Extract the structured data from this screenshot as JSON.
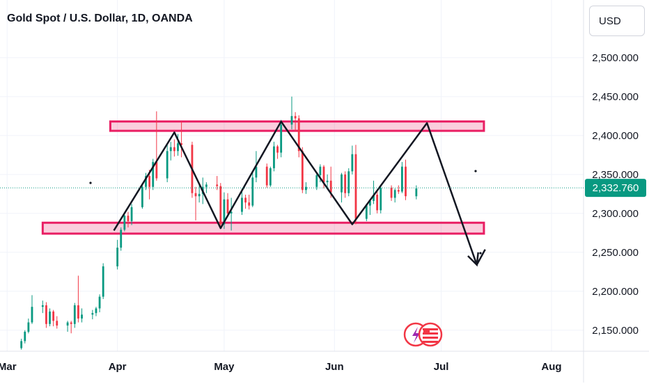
{
  "header": {
    "title": "Gold Spot / U.S. Dollar, 1D, OANDA",
    "currency": "USD"
  },
  "chart_data": {
    "type": "candlestick",
    "yticks": [
      "2,500.000",
      "2,450.000",
      "2,400.000",
      "2,350.000",
      "2,300.000",
      "2,250.000",
      "2,200.000",
      "2,150.000"
    ],
    "ytick_values": [
      2500,
      2450,
      2400,
      2350,
      2300,
      2250,
      2200,
      2150
    ],
    "ylim": [
      2123,
      2574
    ],
    "xticks": [
      "Mar",
      "Apr",
      "May",
      "Jun",
      "Jul",
      "Aug"
    ],
    "xtick_dates": [
      "2024-03-01",
      "2024-04-01",
      "2024-05-01",
      "2024-06-01",
      "2024-07-01",
      "2024-08-01"
    ],
    "xlim": [
      "2024-02-28",
      "2024-08-10"
    ],
    "last_price": "2,332.760",
    "last_price_value": 2332.76,
    "up_color": "#089981",
    "down_color": "#f23645",
    "candles": [
      [
        "2024-03-05",
        2127,
        2139,
        2125,
        2136
      ],
      [
        "2024-03-06",
        2136,
        2150,
        2133,
        2148
      ],
      [
        "2024-03-07",
        2148,
        2165,
        2146,
        2160
      ],
      [
        "2024-03-08",
        2160,
        2195,
        2158,
        2180
      ],
      [
        "2024-03-11",
        2180,
        2188,
        2172,
        2182
      ],
      [
        "2024-03-12",
        2182,
        2186,
        2153,
        2158
      ],
      [
        "2024-03-13",
        2158,
        2178,
        2155,
        2174
      ],
      [
        "2024-03-14",
        2174,
        2176,
        2155,
        2162
      ],
      [
        "2024-03-15",
        2162,
        2168,
        2152,
        2156
      ],
      [
        "2024-03-18",
        2156,
        2162,
        2148,
        2160
      ],
      [
        "2024-03-19",
        2160,
        2162,
        2146,
        2158
      ],
      [
        "2024-03-20",
        2158,
        2185,
        2153,
        2182
      ],
      [
        "2024-03-21",
        2182,
        2220,
        2160,
        2165
      ],
      [
        "2024-03-22",
        2165,
        2178,
        2160,
        2170
      ],
      [
        "2024-03-25",
        2170,
        2176,
        2164,
        2172
      ],
      [
        "2024-03-26",
        2172,
        2180,
        2168,
        2178
      ],
      [
        "2024-03-27",
        2178,
        2196,
        2173,
        2193
      ],
      [
        "2024-03-28",
        2193,
        2236,
        2190,
        2232
      ],
      [
        "2024-04-01",
        2232,
        2266,
        2228,
        2256
      ],
      [
        "2024-04-02",
        2256,
        2282,
        2252,
        2279
      ],
      [
        "2024-04-03",
        2279,
        2298,
        2277,
        2297
      ],
      [
        "2024-04-04",
        2297,
        2302,
        2282,
        2290
      ],
      [
        "2024-04-05",
        2290,
        2312,
        2285,
        2308
      ],
      [
        "2024-04-08",
        2308,
        2338,
        2306,
        2334
      ],
      [
        "2024-04-09",
        2334,
        2352,
        2330,
        2348
      ],
      [
        "2024-04-10",
        2348,
        2356,
        2318,
        2334
      ],
      [
        "2024-04-11",
        2334,
        2370,
        2330,
        2366
      ],
      [
        "2024-04-12",
        2366,
        2431,
        2342,
        2345
      ],
      [
        "2024-04-15",
        2345,
        2388,
        2340,
        2380
      ],
      [
        "2024-04-16",
        2380,
        2392,
        2368,
        2385
      ],
      [
        "2024-04-17",
        2385,
        2395,
        2373,
        2380
      ],
      [
        "2024-04-18",
        2380,
        2402,
        2374,
        2390
      ],
      [
        "2024-04-19",
        2390,
        2418,
        2372,
        2388
      ],
      [
        "2024-04-22",
        2388,
        2392,
        2320,
        2326
      ],
      [
        "2024-04-23",
        2326,
        2334,
        2291,
        2322
      ],
      [
        "2024-04-24",
        2322,
        2338,
        2314,
        2325
      ],
      [
        "2024-04-25",
        2325,
        2346,
        2312,
        2334
      ],
      [
        "2024-04-26",
        2334,
        2340,
        2326,
        2337
      ],
      [
        "2024-04-29",
        2337,
        2348,
        2330,
        2335
      ],
      [
        "2024-04-30",
        2335,
        2339,
        2283,
        2286
      ],
      [
        "2024-05-01",
        2286,
        2327,
        2280,
        2318
      ],
      [
        "2024-05-02",
        2318,
        2326,
        2295,
        2300
      ],
      [
        "2024-05-03",
        2300,
        2320,
        2278,
        2302
      ],
      [
        "2024-05-06",
        2302,
        2332,
        2298,
        2320
      ],
      [
        "2024-05-07",
        2320,
        2324,
        2306,
        2314
      ],
      [
        "2024-05-08",
        2314,
        2324,
        2305,
        2310
      ],
      [
        "2024-05-09",
        2310,
        2353,
        2308,
        2346
      ],
      [
        "2024-05-10",
        2346,
        2380,
        2340,
        2360
      ],
      [
        "2024-05-13",
        2360,
        2364,
        2333,
        2336
      ],
      [
        "2024-05-14",
        2336,
        2360,
        2334,
        2358
      ],
      [
        "2024-05-15",
        2358,
        2392,
        2354,
        2386
      ],
      [
        "2024-05-16",
        2386,
        2388,
        2370,
        2378
      ],
      [
        "2024-05-17",
        2378,
        2420,
        2372,
        2414
      ],
      [
        "2024-05-20",
        2414,
        2450,
        2408,
        2425
      ],
      [
        "2024-05-21",
        2425,
        2430,
        2405,
        2422
      ],
      [
        "2024-05-22",
        2422,
        2426,
        2372,
        2380
      ],
      [
        "2024-05-23",
        2380,
        2385,
        2326,
        2330
      ],
      [
        "2024-05-24",
        2330,
        2340,
        2325,
        2334
      ],
      [
        "2024-05-27",
        2334,
        2352,
        2330,
        2349
      ],
      [
        "2024-05-28",
        2349,
        2363,
        2340,
        2360
      ],
      [
        "2024-05-29",
        2360,
        2362,
        2332,
        2340
      ],
      [
        "2024-05-30",
        2340,
        2350,
        2334,
        2342
      ],
      [
        "2024-05-31",
        2342,
        2360,
        2320,
        2327
      ],
      [
        "2024-06-03",
        2327,
        2352,
        2314,
        2350
      ],
      [
        "2024-06-04",
        2350,
        2354,
        2320,
        2326
      ],
      [
        "2024-06-05",
        2326,
        2358,
        2322,
        2354
      ],
      [
        "2024-06-06",
        2354,
        2387,
        2350,
        2376
      ],
      [
        "2024-06-07",
        2376,
        2388,
        2286,
        2293
      ],
      [
        "2024-06-10",
        2293,
        2312,
        2290,
        2310
      ],
      [
        "2024-06-11",
        2310,
        2318,
        2298,
        2316
      ],
      [
        "2024-06-12",
        2316,
        2342,
        2312,
        2324
      ],
      [
        "2024-06-13",
        2324,
        2330,
        2300,
        2304
      ],
      [
        "2024-06-14",
        2304,
        2336,
        2300,
        2333
      ],
      [
        "2024-06-17",
        2333,
        2336,
        2316,
        2320
      ],
      [
        "2024-06-18",
        2320,
        2332,
        2314,
        2330
      ],
      [
        "2024-06-19",
        2330,
        2336,
        2325,
        2328
      ],
      [
        "2024-06-20",
        2328,
        2366,
        2326,
        2360
      ],
      [
        "2024-06-21",
        2360,
        2369,
        2317,
        2322
      ],
      [
        "2024-06-24",
        2322,
        2336,
        2318,
        2332
      ]
    ],
    "zones": [
      {
        "name": "resistance",
        "low": 2406,
        "high": 2418
      },
      {
        "name": "support",
        "low": 2274,
        "high": 2288
      }
    ],
    "pattern_points": [
      [
        "2024-03-31",
        2278
      ],
      [
        "2024-04-17",
        2404
      ],
      [
        "2024-04-30",
        2281
      ],
      [
        "2024-05-17",
        2418
      ],
      [
        "2024-06-06",
        2286
      ],
      [
        "2024-06-27",
        2416
      ],
      [
        "2024-07-11",
        2234
      ]
    ]
  }
}
